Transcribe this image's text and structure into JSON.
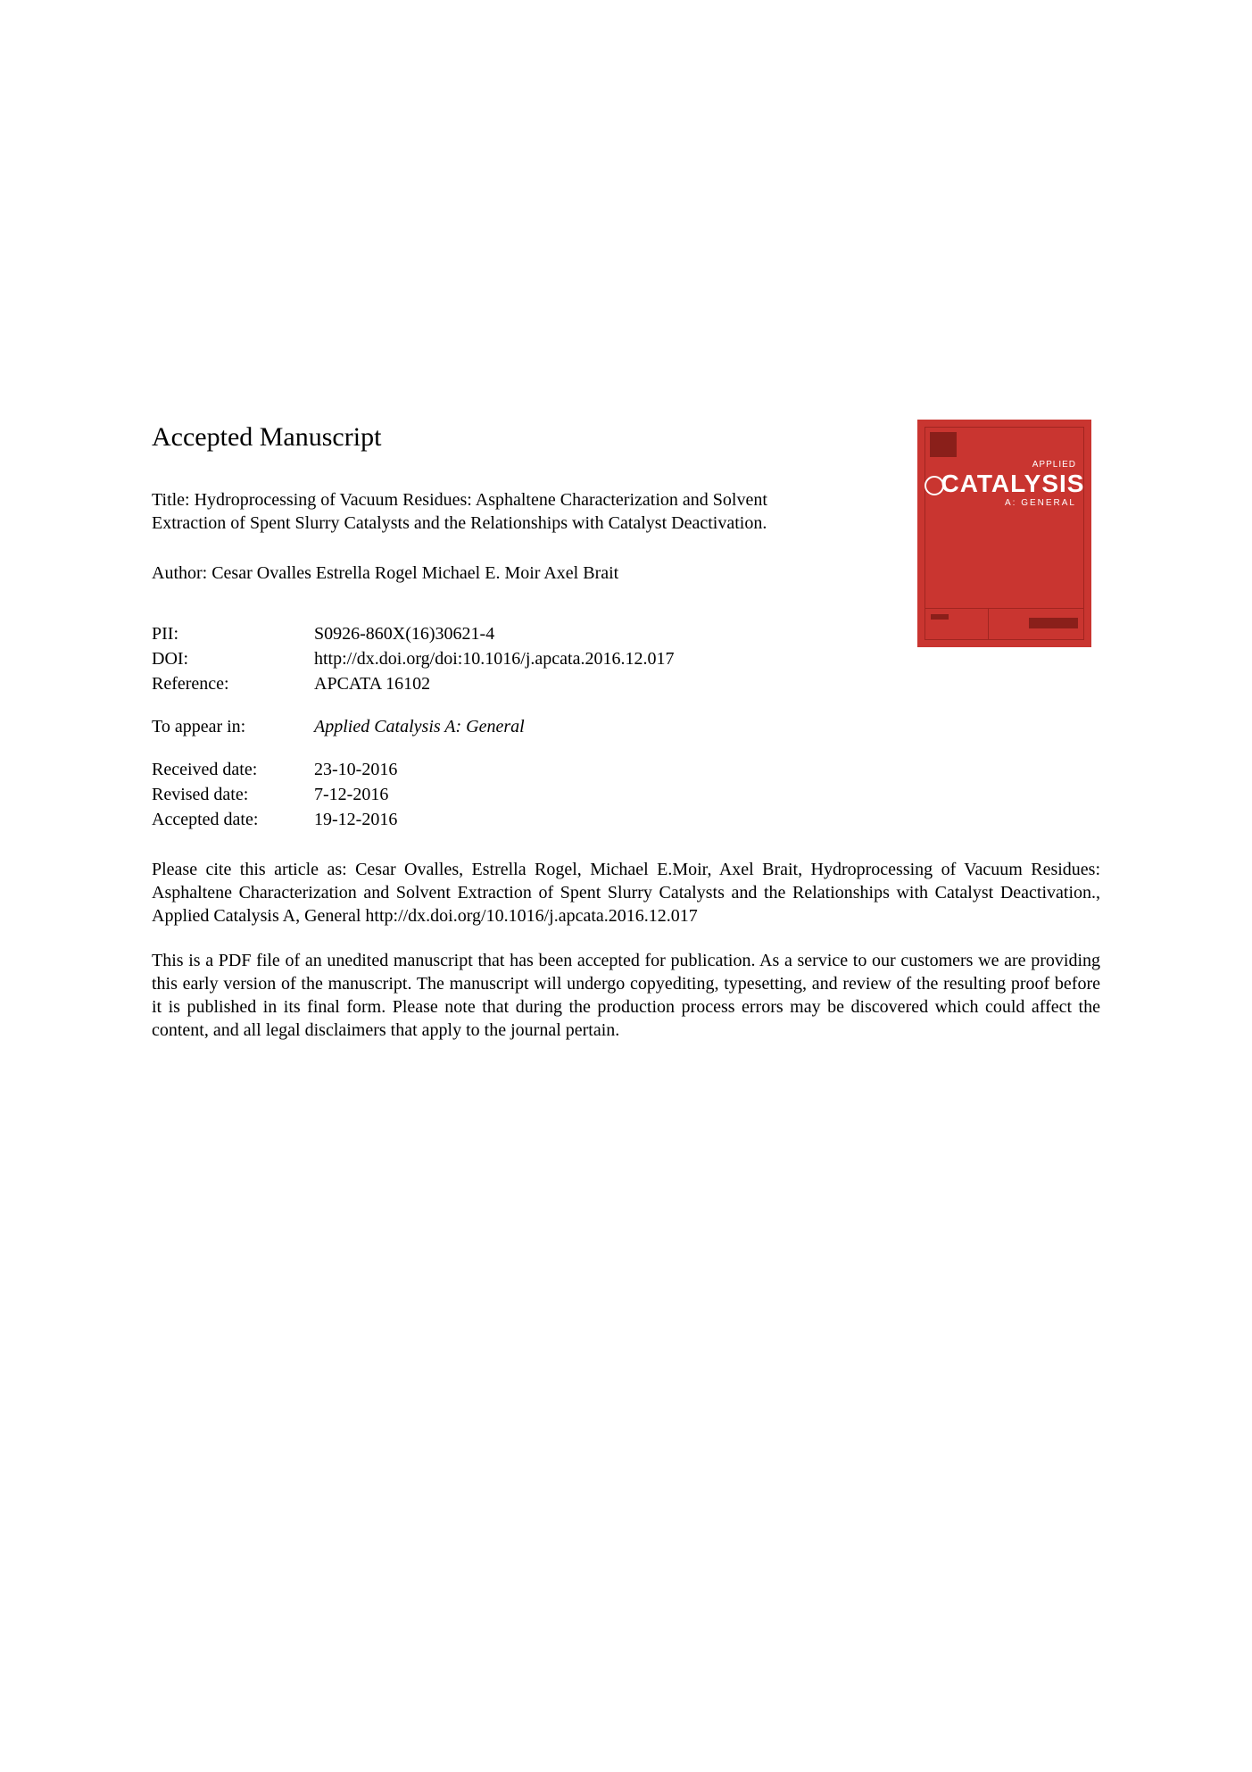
{
  "heading": "Accepted Manuscript",
  "cover": {
    "applied": "APPLIED",
    "title": "CATALYSIS",
    "subtitle": "A: GENERAL",
    "bg_color": "#c93530",
    "border_color": "#a02520",
    "text_color": "#ffffff"
  },
  "title": "Title: Hydroprocessing of Vacuum Residues: Asphaltene Characterization and Solvent Extraction of Spent Slurry Catalysts and the Relationships with Catalyst Deactivation.",
  "author": "Author: Cesar Ovalles Estrella Rogel Michael E. Moir Axel Brait",
  "metadata": {
    "pii_label": "PII:",
    "pii_value": "S0926-860X(16)30621-4",
    "doi_label": "DOI:",
    "doi_value": "http://dx.doi.org/doi:10.1016/j.apcata.2016.12.017",
    "reference_label": "Reference:",
    "reference_value": "APCATA 16102",
    "appear_label": "To appear in:",
    "appear_value": "Applied Catalysis A: General",
    "received_label": "Received date:",
    "received_value": "23-10-2016",
    "revised_label": "Revised date:",
    "revised_value": "7-12-2016",
    "accepted_label": "Accepted date:",
    "accepted_value": "19-12-2016"
  },
  "citation": "Please cite this article as: Cesar Ovalles, Estrella Rogel, Michael E.Moir, Axel Brait, Hydroprocessing of Vacuum Residues: Asphaltene Characterization and Solvent Extraction of Spent Slurry Catalysts and the Relationships with Catalyst Deactivation., Applied Catalysis A, General http://dx.doi.org/10.1016/j.apcata.2016.12.017",
  "disclaimer": "This is a PDF file of an unedited manuscript that has been accepted for publication. As a service to our customers we are providing this early version of the manuscript. The manuscript will undergo copyediting, typesetting, and review of the resulting proof before it is published in its final form. Please note that during the production process errors may be discovered which could affect the content, and all legal disclaimers that apply to the journal pertain."
}
